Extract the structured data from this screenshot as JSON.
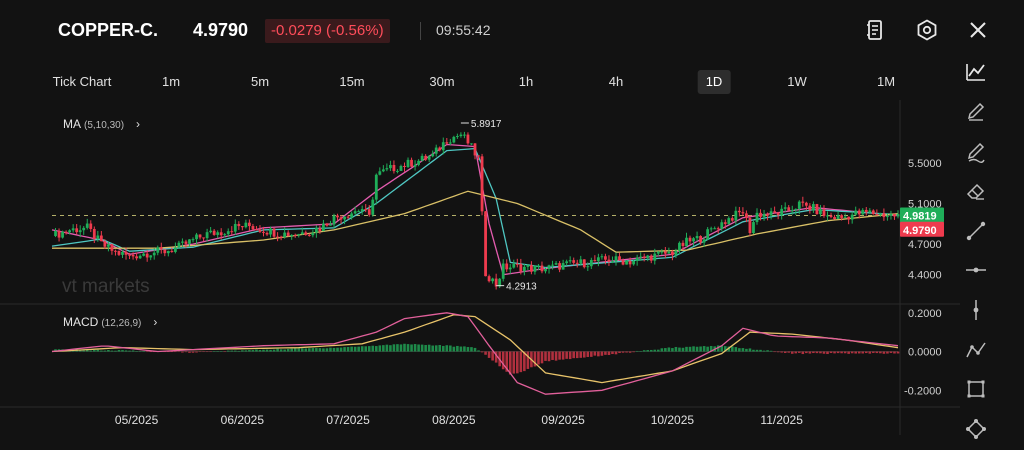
{
  "header": {
    "symbol": "COPPER-C.",
    "price": "4.9790",
    "change": "-0.0279 (-0.56%)",
    "time": "09:55:42",
    "icons": [
      "notes-icon",
      "settings-icon",
      "close-icon"
    ]
  },
  "intervals": {
    "items": [
      "Tick Chart",
      "1m",
      "5m",
      "15m",
      "30m",
      "1h",
      "4h",
      "1D",
      "1W",
      "1M"
    ],
    "active": "1D"
  },
  "toolbar": {
    "icons": [
      "line-chart-icon",
      "pencil-icon",
      "pen-icon",
      "eraser-icon",
      "trend-line-icon",
      "horizontal-line-icon",
      "vertical-line-icon",
      "polyline-icon",
      "rectangle-icon",
      "shape-icon"
    ]
  },
  "ma_indicator": {
    "name": "MA",
    "params": "(5,10,30)"
  },
  "macd_indicator": {
    "name": "MACD",
    "params": "(12,26,9)"
  },
  "watermark": "vt markets",
  "colors": {
    "up": "#1fae59",
    "down": "#ef3b4e",
    "ma5": "#e45caf",
    "ma10": "#4fc7c2",
    "ma30": "#d9c067",
    "bg": "#121212"
  },
  "chart_data": [
    {
      "type": "candlestick",
      "title": "",
      "x_labels": [
        "05/2025",
        "06/2025",
        "07/2025",
        "08/2025",
        "09/2025",
        "10/2025",
        "11/2025"
      ],
      "y_ticks": [
        "5.5000",
        "5.1000",
        "4.7000",
        "4.4000"
      ],
      "ylim": [
        4.15,
        6.0
      ],
      "high_marker": "5.8917",
      "low_marker": "4.2913",
      "current_price": "4.9819",
      "last_price": "4.9790",
      "close_path": [
        [
          0,
          4.78
        ],
        [
          5,
          4.84
        ],
        [
          10,
          4.86
        ],
        [
          14,
          4.7
        ],
        [
          18,
          4.62
        ],
        [
          22,
          4.58
        ],
        [
          28,
          4.62
        ],
        [
          32,
          4.63
        ],
        [
          36,
          4.67
        ],
        [
          40,
          4.74
        ],
        [
          44,
          4.8
        ],
        [
          48,
          4.82
        ],
        [
          52,
          4.87
        ],
        [
          56,
          4.88
        ],
        [
          60,
          4.84
        ],
        [
          64,
          4.81
        ],
        [
          68,
          4.8
        ],
        [
          72,
          4.82
        ],
        [
          76,
          4.86
        ],
        [
          80,
          4.96
        ],
        [
          84,
          5.0
        ],
        [
          88,
          5.05
        ],
        [
          90,
          4.96
        ],
        [
          92,
          5.38
        ],
        [
          96,
          5.44
        ],
        [
          100,
          5.48
        ],
        [
          104,
          5.52
        ],
        [
          108,
          5.57
        ],
        [
          112,
          5.73
        ],
        [
          116,
          5.78
        ],
        [
          118,
          5.7
        ],
        [
          121,
          5.54
        ],
        [
          123,
          4.42
        ],
        [
          126,
          4.3
        ],
        [
          128,
          4.47
        ],
        [
          132,
          4.48
        ],
        [
          136,
          4.46
        ],
        [
          140,
          4.46
        ],
        [
          146,
          4.5
        ],
        [
          152,
          4.52
        ],
        [
          158,
          4.55
        ],
        [
          164,
          4.53
        ],
        [
          170,
          4.58
        ],
        [
          176,
          4.62
        ],
        [
          180,
          4.72
        ],
        [
          184,
          4.76
        ],
        [
          188,
          4.86
        ],
        [
          192,
          4.95
        ],
        [
          196,
          5.02
        ],
        [
          198,
          4.84
        ],
        [
          200,
          5.0
        ],
        [
          204,
          4.99
        ],
        [
          208,
          5.02
        ],
        [
          212,
          5.09
        ],
        [
          216,
          5.05
        ],
        [
          220,
          4.97
        ],
        [
          224,
          4.96
        ],
        [
          228,
          5.0
        ],
        [
          232,
          5.01
        ],
        [
          236,
          4.99
        ],
        [
          240,
          4.979
        ]
      ],
      "ma_series": [
        {
          "name": "MA5",
          "values": [
            [
              0,
              4.84
            ],
            [
              14,
              4.74
            ],
            [
              22,
              4.6
            ],
            [
              40,
              4.7
            ],
            [
              60,
              4.86
            ],
            [
              80,
              4.9
            ],
            [
              92,
              5.22
            ],
            [
              112,
              5.68
            ],
            [
              120,
              5.66
            ],
            [
              124,
              4.9
            ],
            [
              128,
              4.4
            ],
            [
              140,
              4.46
            ],
            [
              176,
              4.6
            ],
            [
              196,
              4.96
            ],
            [
              216,
              5.06
            ],
            [
              240,
              4.98
            ]
          ]
        },
        {
          "name": "MA10",
          "values": [
            [
              0,
              4.68
            ],
            [
              14,
              4.75
            ],
            [
              22,
              4.63
            ],
            [
              40,
              4.67
            ],
            [
              60,
              4.84
            ],
            [
              80,
              4.86
            ],
            [
              92,
              5.1
            ],
            [
              112,
              5.62
            ],
            [
              120,
              5.64
            ],
            [
              126,
              5.15
            ],
            [
              130,
              4.52
            ],
            [
              140,
              4.47
            ],
            [
              176,
              4.57
            ],
            [
              196,
              4.92
            ],
            [
              216,
              5.04
            ],
            [
              240,
              4.99
            ]
          ]
        },
        {
          "name": "MA30",
          "values": [
            [
              0,
              4.66
            ],
            [
              30,
              4.66
            ],
            [
              60,
              4.74
            ],
            [
              80,
              4.84
            ],
            [
              100,
              5.0
            ],
            [
              118,
              5.22
            ],
            [
              132,
              5.1
            ],
            [
              150,
              4.84
            ],
            [
              160,
              4.62
            ],
            [
              180,
              4.64
            ],
            [
              200,
              4.8
            ],
            [
              220,
              4.93
            ],
            [
              240,
              5.0
            ]
          ]
        }
      ]
    },
    {
      "type": "macd",
      "y_ticks": [
        "0.2000",
        "0.0000",
        "-0.2000"
      ],
      "ylim": [
        -0.25,
        0.24
      ],
      "dif": [
        [
          0,
          0.0
        ],
        [
          15,
          0.03
        ],
        [
          30,
          0.0
        ],
        [
          60,
          0.03
        ],
        [
          80,
          0.04
        ],
        [
          92,
          0.1
        ],
        [
          100,
          0.17
        ],
        [
          112,
          0.2
        ],
        [
          118,
          0.18
        ],
        [
          124,
          0.03
        ],
        [
          132,
          -0.16
        ],
        [
          140,
          -0.22
        ],
        [
          156,
          -0.2
        ],
        [
          176,
          -0.1
        ],
        [
          190,
          0.03
        ],
        [
          196,
          0.12
        ],
        [
          205,
          0.08
        ],
        [
          220,
          0.07
        ],
        [
          240,
          0.03
        ]
      ],
      "dea": [
        [
          0,
          0.0
        ],
        [
          20,
          0.02
        ],
        [
          40,
          0.01
        ],
        [
          70,
          0.02
        ],
        [
          88,
          0.04
        ],
        [
          100,
          0.1
        ],
        [
          114,
          0.19
        ],
        [
          120,
          0.18
        ],
        [
          130,
          0.06
        ],
        [
          140,
          -0.11
        ],
        [
          156,
          -0.16
        ],
        [
          176,
          -0.1
        ],
        [
          190,
          -0.01
        ],
        [
          198,
          0.1
        ],
        [
          210,
          0.09
        ],
        [
          225,
          0.06
        ],
        [
          240,
          0.02
        ]
      ],
      "histogram": [
        [
          0,
          0.01
        ],
        [
          20,
          0.005
        ],
        [
          40,
          -0.005
        ],
        [
          60,
          0.01
        ],
        [
          80,
          0.02
        ],
        [
          92,
          0.03
        ],
        [
          100,
          0.04
        ],
        [
          112,
          0.03
        ],
        [
          120,
          0.02
        ],
        [
          124,
          -0.03
        ],
        [
          130,
          -0.12
        ],
        [
          134,
          -0.1
        ],
        [
          140,
          -0.05
        ],
        [
          156,
          -0.02
        ],
        [
          176,
          0.02
        ],
        [
          190,
          0.03
        ],
        [
          200,
          0.01
        ],
        [
          210,
          -0.01
        ],
        [
          240,
          -0.01
        ]
      ]
    }
  ]
}
